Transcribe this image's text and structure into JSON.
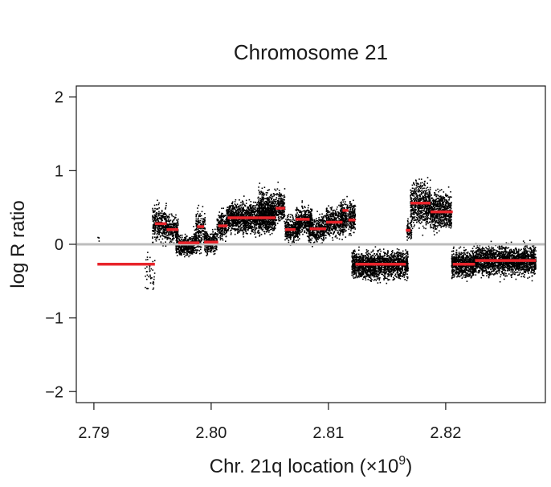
{
  "chart_data": {
    "type": "scatter",
    "title": "Chromosome 21",
    "xlabel": "Chr. 21q location (×10",
    "xlabel_exponent": "9",
    "xlabel_suffix": ")",
    "ylabel": "log R ratio",
    "xlim": [
      2.7885,
      2.8285
    ],
    "ylim": [
      -2.15,
      2.15
    ],
    "xticks": [
      2.79,
      2.8,
      2.81,
      2.82
    ],
    "xtick_labels": [
      "2.79",
      "2.80",
      "2.81",
      "2.82"
    ],
    "yticks": [
      2,
      1,
      0,
      -1,
      -2
    ],
    "ytick_labels": [
      "2",
      "1",
      "0",
      "−1",
      "−2"
    ],
    "grid": false,
    "reference_line": {
      "y": 0,
      "color": "#bdbdbd"
    },
    "point_color": "#000000",
    "segment_color": "#e8242b",
    "probe_clusters": [
      {
        "x": [
          2.7903,
          2.7905
        ],
        "center": 0.05,
        "spread": 0.05,
        "density": 0.2
      },
      {
        "x": [
          2.7943,
          2.7952
        ],
        "center": -0.4,
        "spread": 0.18,
        "density": 0.6
      },
      {
        "x": [
          2.795,
          2.7962
        ],
        "center": 0.28,
        "spread": 0.17,
        "density": 3
      },
      {
        "x": [
          2.7962,
          2.7972
        ],
        "center": 0.2,
        "spread": 0.12,
        "density": 3
      },
      {
        "x": [
          2.797,
          2.7985
        ],
        "center": -0.02,
        "spread": 0.09,
        "density": 3
      },
      {
        "x": [
          2.7985,
          2.7992
        ],
        "center": 0.05,
        "spread": 0.12,
        "density": 2
      },
      {
        "x": [
          2.7987,
          2.7995
        ],
        "center": 0.24,
        "spread": 0.14,
        "density": 2
      },
      {
        "x": [
          2.7994,
          2.8005
        ],
        "center": 0.03,
        "spread": 0.1,
        "density": 3
      },
      {
        "x": [
          2.8005,
          2.8013
        ],
        "center": 0.25,
        "spread": 0.12,
        "density": 3
      },
      {
        "x": [
          2.8013,
          2.8055
        ],
        "center": 0.36,
        "spread": 0.14,
        "density": 4
      },
      {
        "x": [
          2.804,
          2.8063
        ],
        "center": 0.5,
        "spread": 0.16,
        "density": 3
      },
      {
        "x": [
          2.8063,
          2.8076
        ],
        "center": 0.2,
        "spread": 0.12,
        "density": 3
      },
      {
        "x": [
          2.8072,
          2.8086
        ],
        "center": 0.33,
        "spread": 0.13,
        "density": 3
      },
      {
        "x": [
          2.8083,
          2.8098
        ],
        "center": 0.2,
        "spread": 0.13,
        "density": 3
      },
      {
        "x": [
          2.8098,
          2.8113
        ],
        "center": 0.3,
        "spread": 0.14,
        "density": 3
      },
      {
        "x": [
          2.811,
          2.8123
        ],
        "center": 0.38,
        "spread": 0.14,
        "density": 3
      },
      {
        "x": [
          2.812,
          2.8168
        ],
        "center": -0.28,
        "spread": 0.13,
        "density": 4
      },
      {
        "x": [
          2.8167,
          2.8171
        ],
        "center": 0.2,
        "spread": 0.12,
        "density": 2
      },
      {
        "x": [
          2.817,
          2.8187
        ],
        "center": 0.55,
        "spread": 0.2,
        "density": 4
      },
      {
        "x": [
          2.8187,
          2.8205
        ],
        "center": 0.45,
        "spread": 0.17,
        "density": 4
      },
      {
        "x": [
          2.8205,
          2.8225
        ],
        "center": -0.27,
        "spread": 0.12,
        "density": 4
      },
      {
        "x": [
          2.8225,
          2.8277
        ],
        "center": -0.22,
        "spread": 0.13,
        "density": 4
      }
    ],
    "segments": [
      {
        "x": [
          2.7903,
          2.7952
        ],
        "y": -0.27
      },
      {
        "x": [
          2.7952,
          2.7962
        ],
        "y": 0.28
      },
      {
        "x": [
          2.7962,
          2.7972
        ],
        "y": 0.2
      },
      {
        "x": [
          2.7972,
          2.799
        ],
        "y": 0.02
      },
      {
        "x": [
          2.7988,
          2.7994
        ],
        "y": 0.24
      },
      {
        "x": [
          2.7994,
          2.8006
        ],
        "y": 0.03
      },
      {
        "x": [
          2.8006,
          2.8014
        ],
        "y": 0.25
      },
      {
        "x": [
          2.8014,
          2.804
        ],
        "y": 0.36
      },
      {
        "x": [
          2.804,
          2.8055
        ],
        "y": 0.36
      },
      {
        "x": [
          2.8055,
          2.8063
        ],
        "y": 0.49
      },
      {
        "x": [
          2.8063,
          2.8072
        ],
        "y": 0.2
      },
      {
        "x": [
          2.8072,
          2.8084
        ],
        "y": 0.34
      },
      {
        "x": [
          2.8084,
          2.8098
        ],
        "y": 0.21
      },
      {
        "x": [
          2.8098,
          2.8112
        ],
        "y": 0.3
      },
      {
        "x": [
          2.8112,
          2.8117
        ],
        "y": 0.46
      },
      {
        "x": [
          2.8117,
          2.8123
        ],
        "y": 0.33
      },
      {
        "x": [
          2.8123,
          2.8166
        ],
        "y": -0.27
      },
      {
        "x": [
          2.8166,
          2.817
        ],
        "y": 0.19
      },
      {
        "x": [
          2.817,
          2.8187
        ],
        "y": 0.56
      },
      {
        "x": [
          2.8187,
          2.8206
        ],
        "y": 0.44
      },
      {
        "x": [
          2.8206,
          2.8225
        ],
        "y": -0.27
      },
      {
        "x": [
          2.8225,
          2.8277
        ],
        "y": -0.22
      }
    ]
  }
}
